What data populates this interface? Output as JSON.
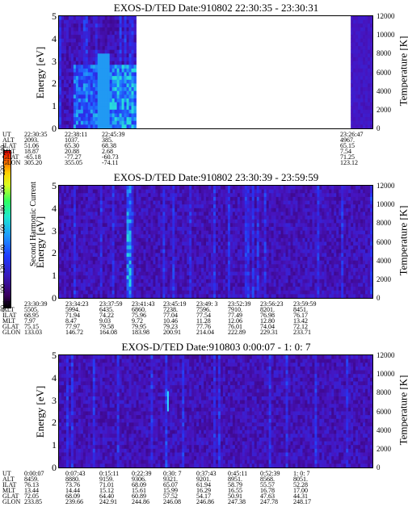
{
  "colorbar": {
    "label": "Second Harmonic Current",
    "ticks": [
      "80",
      "100",
      "120",
      "140",
      "160",
      "180",
      "200",
      "220",
      "240"
    ]
  },
  "chart_data": [
    {
      "type": "heatmap",
      "title": "EXOS-D/TED   Date:910802  22:30:35 - 23:30:31",
      "ylabel": "Energy [eV]",
      "ylim": [
        0,
        5
      ],
      "yticks": [
        "0",
        "1",
        "2",
        "3",
        "4",
        "5"
      ],
      "y2label": "Temperature [K]",
      "y2lim": [
        0,
        12000
      ],
      "y2ticks": [
        "0",
        "2000",
        "4000",
        "6000",
        "8000",
        "10000",
        "12000"
      ],
      "data_coverage": [
        [
          0.0,
          0.245
        ],
        [
          0.925,
          1.0
        ]
      ],
      "orbit_labels": [
        "UT",
        "ALT",
        "ILAT",
        "MLT",
        "GLAT",
        "GLON"
      ],
      "orbit_columns": [
        {
          "UT": "22:30:35",
          "ALT": "2093.",
          "ILAT": "51.06",
          "MLT": "18.87",
          "GLAT": "-65.18",
          "GLON": "305.20"
        },
        {
          "UT": "22:38:11",
          "ALT": "1037.",
          "ILAT": "65.30",
          "MLT": "20.88",
          "GLAT": "-77.27",
          "GLON": "355.05"
        },
        {
          "UT": "22:45:39",
          "ALT": "385.",
          "ILAT": "68.38",
          "MLT": "2.68",
          "GLAT": "-60.73",
          "GLON": "-74.11"
        },
        {
          "UT": "23:26:47",
          "ALT": "4967.",
          "ILAT": "65.15",
          "MLT": "7.54",
          "GLAT": "71.25",
          "GLON": "123.12"
        }
      ]
    },
    {
      "type": "heatmap",
      "title": "EXOS-D/TED   Date:910802  23:30:39 - 23:59:59",
      "ylabel": "Energy [eV]",
      "ylim": [
        0,
        5
      ],
      "yticks": [
        "0",
        "1",
        "2",
        "3",
        "4",
        "5"
      ],
      "y2label": "Temperature [K]",
      "y2lim": [
        0,
        12000
      ],
      "y2ticks": [
        "0",
        "2000",
        "4000",
        "6000",
        "8000",
        "10000",
        "12000"
      ],
      "data_coverage": [
        [
          0.0,
          1.0
        ]
      ],
      "orbit_labels": [
        "UT",
        "ALT",
        "ILAT",
        "MLT",
        "GLAT",
        "GLON"
      ],
      "orbit_columns": [
        {
          "UT": "23:30:39",
          "ALT": "5505.",
          "ILAT": "68.95",
          "MLT": "7.97",
          "GLAT": "75.15",
          "GLON": "133.03"
        },
        {
          "UT": "23:34:23",
          "ALT": "5994.",
          "ILAT": "71.94",
          "MLT": "8.47",
          "GLAT": "77.97",
          "GLON": "146.72"
        },
        {
          "UT": "23:37:59",
          "ALT": "6435.",
          "ILAT": "74.22",
          "MLT": "9.03",
          "GLAT": "79.58",
          "GLON": "164.08"
        },
        {
          "UT": "23:41:43",
          "ALT": "6860.",
          "ILAT": "75.96",
          "MLT": "9.72",
          "GLAT": "79.95",
          "GLON": "183.98"
        },
        {
          "UT": "23:45:19",
          "ALT": "7238.",
          "ILAT": "77.04",
          "MLT": "10.46",
          "GLAT": "79.23",
          "GLON": "200.91"
        },
        {
          "UT": "23:49: 3",
          "ALT": "7596.",
          "ILAT": "77.54",
          "MLT": "11.28",
          "GLAT": "77.76",
          "GLON": "214.04"
        },
        {
          "UT": "23:52:39",
          "ALT": "7910.",
          "ILAT": "77.49",
          "MLT": "12.06",
          "GLAT": "76.01",
          "GLON": "222.89"
        },
        {
          "UT": "23:56:23",
          "ALT": "8201.",
          "ILAT": "76.98",
          "MLT": "12.80",
          "GLAT": "74.04",
          "GLON": "229.31"
        },
        {
          "UT": "23:59:59",
          "ALT": "8451.",
          "ILAT": "76.17",
          "MLT": "13.42",
          "GLAT": "72.12",
          "GLON": "233.71"
        }
      ]
    },
    {
      "type": "heatmap",
      "title": "EXOS-D/TED   Date:910803   0:00:07 - 1: 0: 7",
      "ylabel": "Energy [eV]",
      "ylim": [
        0,
        5
      ],
      "yticks": [
        "0",
        "1",
        "2",
        "3",
        "4",
        "5"
      ],
      "y2label": "Temperature [K]",
      "y2lim": [
        0,
        12000
      ],
      "y2ticks": [
        "0",
        "2000",
        "4000",
        "6000",
        "8000",
        "10000",
        "12000"
      ],
      "data_coverage": [
        [
          0.0,
          1.0
        ]
      ],
      "orbit_labels": [
        "UT",
        "ALT",
        "ILAT",
        "MLT",
        "GLAT",
        "GLON"
      ],
      "orbit_columns": [
        {
          "UT": "0:00:07",
          "ALT": "8459.",
          "ILAT": "76.13",
          "MLT": "13.44",
          "GLAT": "72.05",
          "GLON": "233.85"
        },
        {
          "UT": "0:07:43",
          "ALT": "8880.",
          "ILAT": "73.76",
          "MLT": "14.44",
          "GLAT": "68.09",
          "GLON": "239.66"
        },
        {
          "UT": "0:15:11",
          "ALT": "9159.",
          "ILAT": "71.01",
          "MLT": "15.12",
          "GLAT": "64.40",
          "GLON": "242.91"
        },
        {
          "UT": "0:22:39",
          "ALT": "9306.",
          "ILAT": "68.09",
          "MLT": "15.61",
          "GLAT": "60.89",
          "GLON": "244.86"
        },
        {
          "UT": "0:30: 7",
          "ALT": "9321.",
          "ILAT": "65.07",
          "MLT": "15.99",
          "GLAT": "57.52",
          "GLON": "246.08"
        },
        {
          "UT": "0:37:43",
          "ALT": "9201.",
          "ILAT": "61.94",
          "MLT": "16.29",
          "GLAT": "54.17",
          "GLON": "246.86"
        },
        {
          "UT": "0:45:11",
          "ALT": "8951.",
          "ILAT": "58.79",
          "MLT": "16.55",
          "GLAT": "50.91",
          "GLON": "247.38"
        },
        {
          "UT": "0:52:39",
          "ALT": "8568.",
          "ILAT": "55.57",
          "MLT": "16.78",
          "GLAT": "47.63",
          "GLON": "247.78"
        },
        {
          "UT": "1: 0: 7",
          "ALT": "8051.",
          "ILAT": "52.28",
          "MLT": "17.00",
          "GLAT": "44.31",
          "GLON": "248.17"
        }
      ]
    }
  ]
}
